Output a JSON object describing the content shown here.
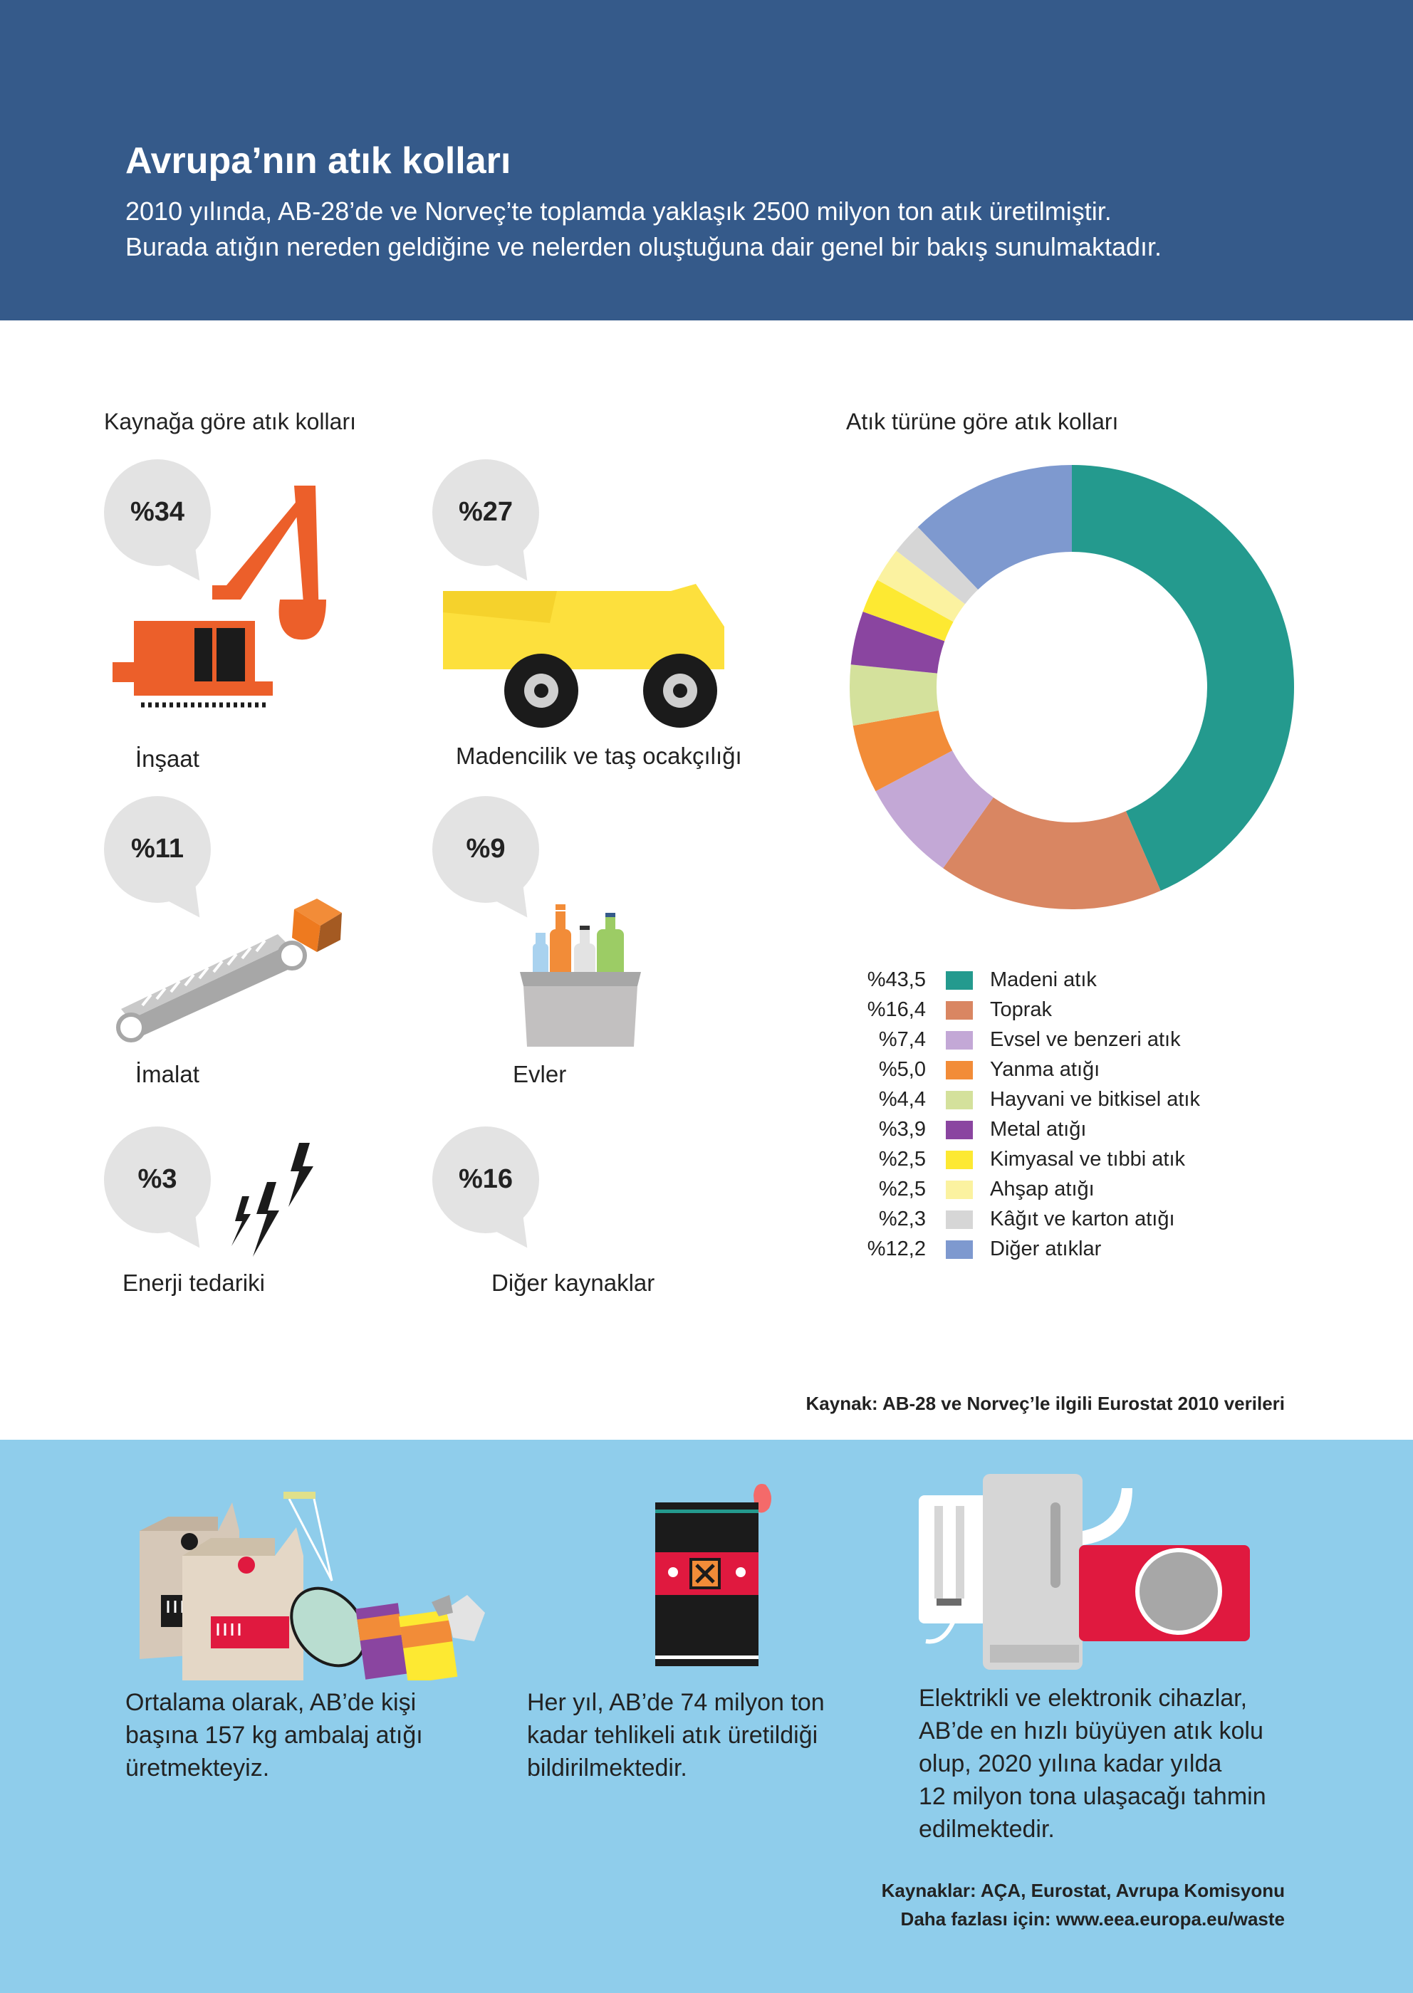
{
  "header": {
    "title": "Avrupa’nın atık kolları",
    "subtitle_line1": "2010 yılında, AB-28’de ve Norveç’te toplamda yaklaşık 2500 milyon ton atık üretilmiştir.",
    "subtitle_line2": "Burada atığın nereden geldiğine ve nelerden oluştuğuna dair genel bir bakış sunulmaktadır."
  },
  "by_source": {
    "title": "Kaynağa göre atık kolları",
    "items": [
      {
        "pct": "%34",
        "label": "İnşaat",
        "icon": "excavator-icon"
      },
      {
        "pct": "%27",
        "label": "Madencilik ve taş ocakçılığı",
        "icon": "dump-truck-icon"
      },
      {
        "pct": "%11",
        "label": "İmalat",
        "icon": "conveyor-belt-icon"
      },
      {
        "pct": "%9",
        "label": "Evler",
        "icon": "household-bin-icon"
      },
      {
        "pct": "%3",
        "label": "Enerji tedariki",
        "icon": "lightning-icon"
      },
      {
        "pct": "%16",
        "label": "Diğer kaynaklar",
        "icon": ""
      }
    ]
  },
  "by_type": {
    "title": "Atık türüne göre atık kolları",
    "legend": [
      {
        "pct": "%43,5",
        "label": "Madeni atık"
      },
      {
        "pct": "%16,4",
        "label": "Toprak"
      },
      {
        "pct": "%7,4",
        "label": "Evsel ve benzeri atık"
      },
      {
        "pct": "%5,0",
        "label": "Yanma atığı"
      },
      {
        "pct": "%4,4",
        "label": "Hayvani ve bitkisel atık"
      },
      {
        "pct": "%3,9",
        "label": "Metal atığı"
      },
      {
        "pct": "%2,5",
        "label": "Kimyasal ve tıbbi atık"
      },
      {
        "pct": "%2,5",
        "label": "Ahşap atığı"
      },
      {
        "pct": "%2,3",
        "label": "Kâğıt ve karton atığı"
      },
      {
        "pct": "%12,2",
        "label": "Diğer atıklar"
      }
    ]
  },
  "chart_data": {
    "type": "pie",
    "categories": [
      "Madeni atık",
      "Toprak",
      "Evsel ve benzeri atık",
      "Yanma atığı",
      "Hayvani ve bitkisel atık",
      "Metal atığı",
      "Kimyasal ve tıbbi atık",
      "Ahşap atığı",
      "Kâğıt ve karton atığı",
      "Diğer atıklar"
    ],
    "values": [
      43.5,
      16.4,
      7.4,
      5.0,
      4.4,
      3.9,
      2.5,
      2.5,
      2.3,
      12.2
    ],
    "colors": [
      "#249a8e",
      "#d98662",
      "#c3a8d6",
      "#f28c38",
      "#d4e19c",
      "#8a45a0",
      "#fde932",
      "#fbf2a0",
      "#d6d6d6",
      "#7e99cf"
    ],
    "title": "Atık türüne göre atık kolları",
    "style": "donut"
  },
  "source_note": "Kaynak: AB-28 ve Norveç’le ilgili Eurostat 2010 verileri",
  "facts": [
    {
      "lines": [
        "Ortalama olarak, AB’de kişi",
        "başına 157 kg ambalaj atığı",
        "üretmekteyiz."
      ],
      "icon": "packaging-waste-icon"
    },
    {
      "lines": [
        "Her yıl, AB’de 74 milyon ton",
        "kadar tehlikeli atık üretildiği",
        "bildirilmektedir."
      ],
      "icon": "hazardous-barrel-icon"
    },
    {
      "lines": [
        "Elektrikli ve elektronik cihazlar,",
        "AB’de en hızlı büyüyen atık kolu",
        "olup, 2020 yılına kadar yılda",
        "12 milyon tona ulaşacağı tahmin",
        "edilmektedir."
      ],
      "icon": "electronic-devices-icon"
    }
  ],
  "footer": {
    "sources": "Kaynaklar: AÇA, Eurostat, Avrupa Komisyonu",
    "more_info": "Daha fazlası için: www.eea.europa.eu/waste"
  }
}
